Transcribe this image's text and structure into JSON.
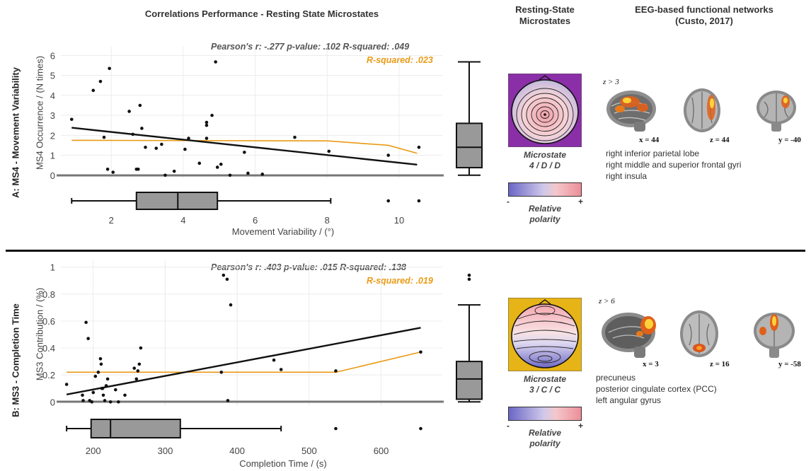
{
  "headers": {
    "correlations": "Correlations Performance - Resting State Microstates",
    "microstates_line1": "Resting-State",
    "microstates_line2": "Microstates",
    "networks_line1": "EEG-based functional networks",
    "networks_line2": "(Custo, 2017)"
  },
  "panels": [
    {
      "row_label": "A: MS4 - Movement Variability",
      "stats_dark": "Pearson's r: -.277  p-value: .102    R-squared: .049",
      "stats_orange": "R-squared:  .023",
      "microstate_line1": "Microstate",
      "microstate_line2": "4 / D / D",
      "map_bg_color": "#8a2fa8",
      "polarity_minus": "-",
      "polarity_plus": "+",
      "polarity_label_line1": "Relative",
      "polarity_label_line2": "polarity",
      "threshold": "z > 3",
      "brain_views": [
        "x = 44",
        "z = 44",
        "y = -40"
      ],
      "network_regions": [
        "right inferior parietal lobe",
        "right middle and superior frontal gyri",
        "right insula"
      ]
    },
    {
      "row_label": "B: MS3 - Completion Time",
      "stats_dark": "Pearson's r: .403  p-value: .015      R-squared: .138",
      "stats_orange": "R-squared:  .019",
      "microstate_line1": "Microstate",
      "microstate_line2": "3 / C / C",
      "map_bg_color": "#e6b416",
      "polarity_minus": "-",
      "polarity_plus": "+",
      "polarity_label_line1": "Relative",
      "polarity_label_line2": "polarity",
      "threshold": "z > 6",
      "brain_views": [
        "x = 3",
        "z = 16",
        "y = -58"
      ],
      "network_regions": [
        "precuneus",
        "posterior cingulate cortex (PCC)",
        "left angular gyrus"
      ]
    }
  ],
  "colors": {
    "orange": "#e99a14",
    "box_fill": "#999999",
    "regression": "#111111"
  },
  "chart_data": [
    {
      "type": "scatter",
      "xlabel": "Movement Variability / (°)",
      "ylabel": "MS4 Occurrence / (N times)",
      "xlim": [
        0.6,
        11.2
      ],
      "ylim": [
        -0.15,
        6.3
      ],
      "x_ticks": [
        2,
        4,
        6,
        8,
        10
      ],
      "y_ticks": [
        0,
        1,
        2,
        3,
        4,
        5,
        6
      ],
      "grid": true,
      "points": [
        [
          0.9,
          2.8
        ],
        [
          1.5,
          4.25
        ],
        [
          1.7,
          4.7
        ],
        [
          1.8,
          1.9
        ],
        [
          1.9,
          0.3
        ],
        [
          1.95,
          5.35
        ],
        [
          2.05,
          0.15
        ],
        [
          2.5,
          3.2
        ],
        [
          2.6,
          2.05
        ],
        [
          2.7,
          0.3
        ],
        [
          2.75,
          0.3
        ],
        [
          2.8,
          3.5
        ],
        [
          2.85,
          2.35
        ],
        [
          2.95,
          1.4
        ],
        [
          3.25,
          1.35
        ],
        [
          3.4,
          1.55
        ],
        [
          3.5,
          0.0
        ],
        [
          3.75,
          0.2
        ],
        [
          4.05,
          1.3
        ],
        [
          4.15,
          1.85
        ],
        [
          4.45,
          0.6
        ],
        [
          4.65,
          2.5
        ],
        [
          4.65,
          2.65
        ],
        [
          4.65,
          1.85
        ],
        [
          4.8,
          3.0
        ],
        [
          4.9,
          5.68
        ],
        [
          4.95,
          0.4
        ],
        [
          5.05,
          0.55
        ],
        [
          5.3,
          0.0
        ],
        [
          5.7,
          1.15
        ],
        [
          5.8,
          0.1
        ],
        [
          6.2,
          0.05
        ],
        [
          7.1,
          1.9
        ],
        [
          8.05,
          1.2
        ],
        [
          9.7,
          1.0
        ],
        [
          10.55,
          1.4
        ]
      ],
      "regression_line": {
        "x": [
          0.9,
          10.5
        ],
        "y": [
          2.38,
          0.53
        ]
      },
      "robust_line": {
        "x": [
          0.9,
          8.0,
          9.7,
          10.5
        ],
        "y": [
          1.75,
          1.72,
          1.5,
          1.1
        ]
      },
      "x_box": {
        "whisker_low": 0.9,
        "q1": 2.7,
        "median": 3.85,
        "q3": 4.95,
        "whisker_high": 8.1,
        "outliers": [
          9.7,
          10.55
        ]
      },
      "y_box": {
        "whisker_low": 0.0,
        "q1": 0.38,
        "median": 1.4,
        "q3": 2.6,
        "whisker_high": 5.68,
        "outliers": []
      }
    },
    {
      "type": "scatter",
      "xlabel": "Completion Time / (s)",
      "ylabel": "MS3 Contribution / (%)",
      "xlim": [
        155,
        685
      ],
      "ylim": [
        -0.03,
        1.03
      ],
      "x_ticks": [
        200,
        300,
        400,
        500,
        600
      ],
      "y_ticks": [
        0,
        0.2,
        0.4,
        0.6,
        0.8,
        1
      ],
      "y_tick_labels": [
        "0",
        "0.2",
        "0.4",
        "0.6",
        "0.8",
        "1"
      ],
      "grid": true,
      "points": [
        [
          163,
          0.13
        ],
        [
          185,
          0.05
        ],
        [
          186,
          0.01
        ],
        [
          190,
          0.59
        ],
        [
          193,
          0.47
        ],
        [
          195,
          0.01
        ],
        [
          198,
          0.0
        ],
        [
          200,
          0.07
        ],
        [
          203,
          0.19
        ],
        [
          207,
          0.22
        ],
        [
          210,
          0.32
        ],
        [
          211,
          0.28
        ],
        [
          212,
          0.1
        ],
        [
          213,
          0.1
        ],
        [
          214,
          0.05
        ],
        [
          216,
          0.01
        ],
        [
          218,
          0.12
        ],
        [
          220,
          0.17
        ],
        [
          224,
          0.0
        ],
        [
          231,
          0.09
        ],
        [
          235,
          0.0
        ],
        [
          244,
          0.05
        ],
        [
          257,
          0.25
        ],
        [
          260,
          0.17
        ],
        [
          262,
          0.23
        ],
        [
          264,
          0.28
        ],
        [
          266,
          0.4
        ],
        [
          378,
          0.22
        ],
        [
          381,
          0.94
        ],
        [
          386,
          0.91
        ],
        [
          387,
          0.01
        ],
        [
          391,
          0.72
        ],
        [
          451,
          0.31
        ],
        [
          461,
          0.24
        ],
        [
          537,
          0.23
        ],
        [
          655,
          0.37
        ]
      ],
      "regression_line": {
        "x": [
          163,
          655
        ],
        "y": [
          0.055,
          0.55
        ]
      },
      "robust_line": {
        "x": [
          163,
          537,
          655
        ],
        "y": [
          0.22,
          0.22,
          0.37
        ]
      },
      "x_box": {
        "whisker_low": 163,
        "q1": 197,
        "median": 224,
        "q3": 321,
        "whisker_high": 461,
        "outliers": [
          537,
          655
        ]
      },
      "y_box": {
        "whisker_low": 0.0,
        "q1": 0.02,
        "median": 0.17,
        "q3": 0.3,
        "whisker_high": 0.72,
        "outliers": [
          0.91,
          0.94
        ]
      }
    }
  ]
}
